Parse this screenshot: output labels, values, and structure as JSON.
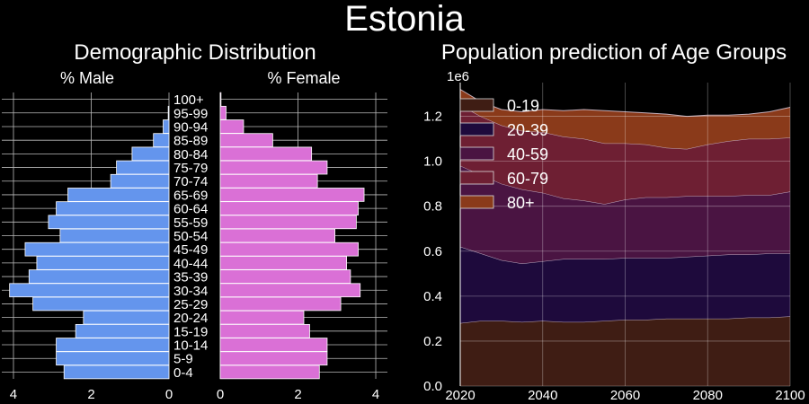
{
  "figure_title": "Estonia",
  "chart_data": [
    {
      "type": "bar",
      "orientation": "horizontal",
      "title": "Demographic Distribution",
      "categories": [
        "0-4",
        "5-9",
        "10-14",
        "15-19",
        "20-24",
        "25-29",
        "30-34",
        "35-39",
        "40-44",
        "45-49",
        "50-54",
        "55-59",
        "60-64",
        "65-69",
        "70-74",
        "75-79",
        "80-84",
        "85-89",
        "90-94",
        "95-99",
        "100+"
      ],
      "series": [
        {
          "name": "% Male",
          "color": "#6495ED",
          "values": [
            2.7,
            2.9,
            2.9,
            2.4,
            2.2,
            3.5,
            4.1,
            3.6,
            3.4,
            3.7,
            2.8,
            3.1,
            2.9,
            2.6,
            1.5,
            1.35,
            0.95,
            0.4,
            0.15,
            0.02,
            0.0
          ]
        },
        {
          "name": "% Female",
          "color": "#DA70D6",
          "values": [
            2.55,
            2.75,
            2.75,
            2.3,
            2.15,
            3.1,
            3.6,
            3.35,
            3.25,
            3.55,
            2.95,
            3.5,
            3.55,
            3.7,
            2.5,
            2.75,
            2.35,
            1.35,
            0.6,
            0.15,
            0.02
          ]
        }
      ],
      "xlim": [
        0,
        4.3
      ],
      "xticks": [
        0,
        2,
        4
      ],
      "grid": true
    },
    {
      "type": "area",
      "stacked": true,
      "title": "Population prediction of Age Groups",
      "y_multiplier_label": "1e6",
      "x": [
        2020,
        2025,
        2030,
        2035,
        2040,
        2045,
        2050,
        2055,
        2060,
        2065,
        2070,
        2075,
        2080,
        2085,
        2090,
        2095,
        2100
      ],
      "series": [
        {
          "name": "0-19",
          "color": "#3F1D14",
          "values": [
            0.28,
            0.29,
            0.29,
            0.285,
            0.29,
            0.285,
            0.285,
            0.29,
            0.295,
            0.295,
            0.3,
            0.3,
            0.3,
            0.3,
            0.305,
            0.305,
            0.31
          ]
        },
        {
          "name": "20-39",
          "color": "#1E0A3C",
          "values": [
            0.34,
            0.3,
            0.27,
            0.26,
            0.265,
            0.28,
            0.28,
            0.275,
            0.275,
            0.275,
            0.27,
            0.275,
            0.28,
            0.285,
            0.28,
            0.285,
            0.28
          ]
        },
        {
          "name": "40-59",
          "color": "#4A1442",
          "values": [
            0.36,
            0.35,
            0.34,
            0.33,
            0.305,
            0.27,
            0.26,
            0.245,
            0.26,
            0.27,
            0.27,
            0.27,
            0.265,
            0.26,
            0.265,
            0.26,
            0.275
          ]
        },
        {
          "name": "60-79",
          "color": "#6E1F33",
          "values": [
            0.27,
            0.26,
            0.26,
            0.26,
            0.27,
            0.275,
            0.275,
            0.27,
            0.25,
            0.235,
            0.22,
            0.21,
            0.23,
            0.245,
            0.25,
            0.25,
            0.24
          ]
        },
        {
          "name": "80+",
          "color": "#8A3A1A",
          "values": [
            0.07,
            0.065,
            0.07,
            0.085,
            0.1,
            0.115,
            0.13,
            0.145,
            0.14,
            0.14,
            0.15,
            0.145,
            0.13,
            0.115,
            0.11,
            0.12,
            0.135
          ]
        }
      ],
      "xlim": [
        2020,
        2100
      ],
      "xticks": [
        2020,
        2040,
        2060,
        2080,
        2100
      ],
      "ylim": [
        0,
        1.35
      ],
      "yticks": [
        "0.0",
        "0.2",
        "0.4",
        "0.6",
        "0.8",
        "1.0",
        "1.2"
      ],
      "legend": "upper-left",
      "grid": true
    }
  ]
}
